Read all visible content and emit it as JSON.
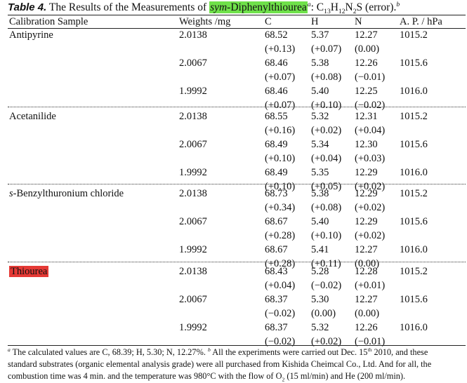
{
  "caption": {
    "table_label": "Table 4.",
    "text_before": " The Results of the Measurements of ",
    "compound_prefix": "sym",
    "compound_rest": "-Diphenylthiourea",
    "note_mark": "a",
    "formula_sep": ": ",
    "formula": {
      "c": "C",
      "c_n": "13",
      "h": "H",
      "h_n": "12",
      "n": "N",
      "n_n": "2",
      "s": "S"
    },
    "error_text": " (error).",
    "note_mark_b": "b",
    "highlight_color": "#6fe14a"
  },
  "table": {
    "headers": [
      "Calibration Sample",
      "Weights /mg",
      "C",
      "H",
      "N",
      "A. P. / hPa"
    ],
    "groups": [
      {
        "sample": "Antipyrine",
        "highlight": false,
        "rows": [
          {
            "weight": "2.0138",
            "c": "68.52",
            "h": "5.37",
            "n": "12.27",
            "ap": "1015.2",
            "c_err": "(+0.13)",
            "h_err": "(+0.07)",
            "n_err": "(0.00)"
          },
          {
            "weight": "2.0067",
            "c": "68.46",
            "h": "5.38",
            "n": "12.26",
            "ap": "1015.6",
            "c_err": "(+0.07)",
            "h_err": "(+0.08)",
            "n_err": "(−0.01)"
          },
          {
            "weight": "1.9992",
            "c": "68.46",
            "h": "5.40",
            "n": "12.25",
            "ap": "1016.0",
            "c_err": "(+0.07)",
            "h_err": "(+0.10)",
            "n_err": "(−0.02)"
          }
        ]
      },
      {
        "sample": "Acetanilide",
        "highlight": false,
        "rows": [
          {
            "weight": "2.0138",
            "c": "68.55",
            "h": "5.32",
            "n": "12.31",
            "ap": "1015.2",
            "c_err": "(+0.16)",
            "h_err": "(+0.02)",
            "n_err": "(+0.04)"
          },
          {
            "weight": "2.0067",
            "c": "68.49",
            "h": "5.34",
            "n": "12.30",
            "ap": "1015.6",
            "c_err": "(+0.10)",
            "h_err": "(+0.04)",
            "n_err": "(+0.03)"
          },
          {
            "weight": "1.9992",
            "c": "68.49",
            "h": "5.35",
            "n": "12.29",
            "ap": "1016.0",
            "c_err": "(+0.10)",
            "h_err": "(+0.05)",
            "n_err": "(+0.02)"
          }
        ]
      },
      {
        "sample_italic": "s",
        "sample": "-Benzylthuronium chloride",
        "highlight": false,
        "rows": [
          {
            "weight": "2.0138",
            "c": "68.73",
            "h": "5.38",
            "n": "12.29",
            "ap": "1015.2",
            "c_err": "(+0.34)",
            "h_err": "(+0.08)",
            "n_err": "(+0.02)"
          },
          {
            "weight": "2.0067",
            "c": "68.67",
            "h": "5.40",
            "n": "12.29",
            "ap": "1015.6",
            "c_err": "(+0.28)",
            "h_err": "(+0.10)",
            "n_err": "(+0.02)"
          },
          {
            "weight": "1.9992",
            "c": "68.67",
            "h": "5.41",
            "n": "12.27",
            "ap": "1016.0",
            "c_err": "(+0.28)",
            "h_err": "(+0.11)",
            "n_err": "(0.00)"
          }
        ]
      },
      {
        "sample": "Thiourea",
        "highlight": true,
        "highlight_color": "#e53935",
        "rows": [
          {
            "weight": "2.0138",
            "c": "68.43",
            "h": "5.28",
            "n": "12.28",
            "ap": "1015.2",
            "c_err": "(+0.04)",
            "h_err": "(−0.02)",
            "n_err": "(+0.01)"
          },
          {
            "weight": "2.0067",
            "c": "68.37",
            "h": "5.30",
            "n": "12.27",
            "ap": "1015.6",
            "c_err": "(−0.02)",
            "h_err": "(0.00)",
            "n_err": "(0.00)"
          },
          {
            "weight": "1.9992",
            "c": "68.37",
            "h": "5.32",
            "n": "12.26",
            "ap": "1016.0",
            "c_err": "(−0.02)",
            "h_err": "(+0.02)",
            "n_err": "(−0.01)"
          }
        ]
      }
    ]
  },
  "footnote": {
    "a_mark": "a",
    "line1_a": " The calculated values are C, 68.39; H, 5.30; N, 12.27%. ",
    "b_mark": "b",
    "line1_b": " All the experiments were carried out Dec. 15",
    "th": "th",
    "line1_c": " 2010, and these",
    "line2": "standard substrates (organic elemental analysis grade) were all purchased from Kishida Cheimcal Co., Ltd. And for all, the",
    "line3_a": "combustion time was 4 min. and the temperature was 980°C with the flow of O",
    "o2_sub": "2",
    "line3_b": " (15 ml/min) and He (200 ml/min)."
  }
}
